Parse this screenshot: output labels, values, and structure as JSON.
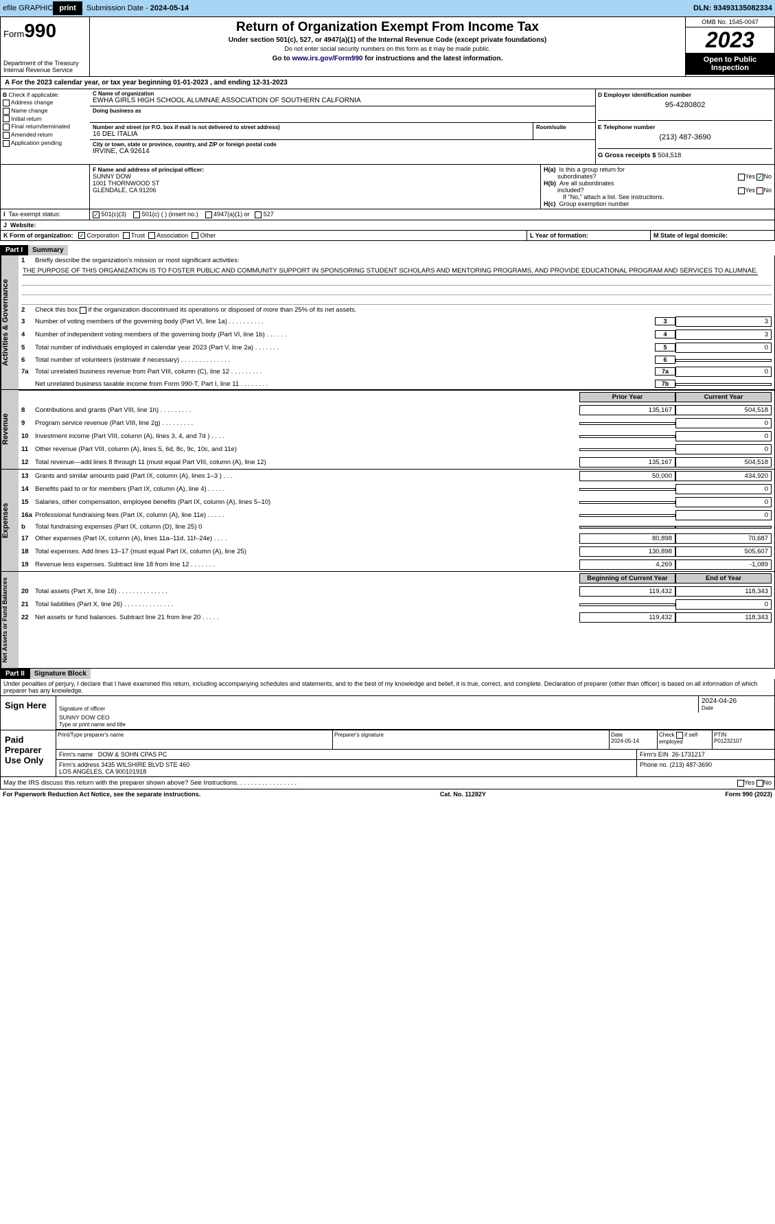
{
  "topbar": {
    "efile": "efile GRAPHIC",
    "print": "print",
    "subdate_lbl": "Submission Date - ",
    "subdate": "2024-05-14",
    "dln_lbl": "DLN: ",
    "dln": "93493135082334"
  },
  "header": {
    "form_lbl": "Form",
    "form_num": "990",
    "dept": "Department of the Treasury\nInternal Revenue Service",
    "title": "Return of Organization Exempt From Income Tax",
    "sub1": "Under section 501(c), 527, or 4947(a)(1) of the Internal Revenue Code (except private foundations)",
    "sub2": "Do not enter social security numbers on this form as it may be made public.",
    "goto": "Go to www.irs.gov/Form990 for instructions and the latest information.",
    "goto_url": "www.irs.gov/Form990",
    "omb": "OMB No. 1545-0047",
    "year": "2023",
    "open": "Open to Public Inspection"
  },
  "A": {
    "text": "For the 2023 calendar year, or tax year beginning 01-01-2023    , and ending 12-31-2023"
  },
  "B": {
    "lbl": "B Check if applicable:",
    "items": [
      "Address change",
      "Name change",
      "Initial return",
      "Final return/terminated",
      "Amended return",
      "Application pending"
    ]
  },
  "C": {
    "name_lbl": "C Name of organization",
    "name": "EWHA GIRLS HIGH SCHOOL ALUMNAE ASSOCIATION OF SOUTHERN CALFORNIA",
    "dba_lbl": "Doing business as",
    "addr_lbl": "Number and street (or P.O. box if mail is not delivered to street address)",
    "addr": "16 DEL ITALIA",
    "room_lbl": "Room/suite",
    "city_lbl": "City or town, state or province, country, and ZIP or foreign postal code",
    "city": "IRVINE, CA  92614"
  },
  "D": {
    "lbl": "D Employer identification number",
    "val": "95-4280802"
  },
  "E": {
    "lbl": "E Telephone number",
    "val": "(213) 487-3690"
  },
  "G": {
    "lbl": "G Gross receipts $",
    "val": "504,518"
  },
  "F": {
    "lbl": "F  Name and address of principal officer:",
    "name": "SUNNY DOW",
    "addr1": "1001 THORNWOOD ST",
    "addr2": "GLENDALE, CA  91206"
  },
  "H": {
    "a": "H(a)  Is this a group return for subordinates?",
    "b": "H(b)  Are all subordinates included?",
    "b_note": "If \"No,\" attach a list. See instructions.",
    "c": "H(c)  Group exemption number",
    "yes": "Yes",
    "no": "No"
  },
  "I": {
    "lbl": "Tax-exempt status:",
    "opts": [
      "501(c)(3)",
      "501(c) (  ) (insert no.)",
      "4947(a)(1) or",
      "527"
    ]
  },
  "J": {
    "lbl": "Website:"
  },
  "K": {
    "lbl": "K Form of organization:",
    "opts": [
      "Corporation",
      "Trust",
      "Association",
      "Other"
    ]
  },
  "L": {
    "lbl": "L Year of formation:"
  },
  "M": {
    "lbl": "M State of legal domicile:"
  },
  "part1": {
    "hdr": "Part I",
    "title": "Summary",
    "side1": "Activities & Governance",
    "side2": "Revenue",
    "side3": "Expenses",
    "side4": "Net Assets or Fund Balances",
    "l1_lbl": "Briefly describe the organization's mission or most significant activities:",
    "l1_txt": "THE PURPOSE OF THIS ORGANIZATION IS TO FOSTER PUBLIC AND COMMUNITY SUPPORT IN SPONSORING STUDENT SCHOLARS AND MENTORING PROGRAMS, AND PROVIDE EDUCATIONAL PROGRAM AND SERVICES TO ALUMNAE.",
    "l2": "Check this box      if the organization discontinued its operations or disposed of more than 25% of its net assets.",
    "lines_a": [
      {
        "n": "3",
        "t": "Number of voting members of the governing body (Part VI, line 1a)   .    .    .    .    .    .    .    .    .    .",
        "v": "3"
      },
      {
        "n": "4",
        "t": "Number of independent voting members of the governing body (Part VI, line 1b)   .    .    .    .    .    .",
        "v": "3"
      },
      {
        "n": "5",
        "t": "Total number of individuals employed in calendar year 2023 (Part V, line 2a)   .    .    .    .    .    .    .",
        "v": "0"
      },
      {
        "n": "6",
        "t": "Total number of volunteers (estimate if necessary)   .    .    .    .    .    .    .    .    .    .    .    .    .    .",
        "v": ""
      },
      {
        "n": "7a",
        "t": "Total unrelated business revenue from Part VIII, column (C), line 12   .    .    .    .    .    .    .    .    .",
        "v": "0"
      },
      {
        "n": "",
        "t": "Net unrelated business taxable income from Form 990-T, Part I, line 11   .    .    .    .    .    .    .    .",
        "n2": "7b",
        "v": ""
      }
    ],
    "col_prior": "Prior Year",
    "col_curr": "Current Year",
    "rev": [
      {
        "n": "8",
        "t": "Contributions and grants (Part VIII, line 1h)   .    .    .    .    .    .    .    .    .",
        "p": "135,167",
        "c": "504,518"
      },
      {
        "n": "9",
        "t": "Program service revenue (Part VIII, line 2g)   .    .    .    .    .    .    .    .    .",
        "p": "",
        "c": "0"
      },
      {
        "n": "10",
        "t": "Investment income (Part VIII, column (A), lines 3, 4, and 7d )   .    .    .    .",
        "p": "",
        "c": "0"
      },
      {
        "n": "11",
        "t": "Other revenue (Part VIII, column (A), lines 5, 6d, 8c, 9c, 10c, and 11e)",
        "p": "",
        "c": "0"
      },
      {
        "n": "12",
        "t": "Total revenue—add lines 8 through 11 (must equal Part VIII, column (A), line 12)",
        "p": "135,167",
        "c": "504,518"
      }
    ],
    "exp": [
      {
        "n": "13",
        "t": "Grants and similar amounts paid (Part IX, column (A), lines 1–3 )   .    .    .",
        "p": "50,000",
        "c": "434,920"
      },
      {
        "n": "14",
        "t": "Benefits paid to or for members (Part IX, column (A), line 4)   .    .    .    .    .",
        "p": "",
        "c": "0"
      },
      {
        "n": "15",
        "t": "Salaries, other compensation, employee benefits (Part IX, column (A), lines 5–10)",
        "p": "",
        "c": "0"
      },
      {
        "n": "16a",
        "t": "Professional fundraising fees (Part IX, column (A), line 11e)   .    .    .    .    .",
        "p": "",
        "c": "0"
      },
      {
        "n": "b",
        "t": "Total fundraising expenses (Part IX, column (D), line 25) 0",
        "p": "gray",
        "c": "gray"
      },
      {
        "n": "17",
        "t": "Other expenses (Part IX, column (A), lines 11a–11d, 11f–24e)   .    .    .    .",
        "p": "80,898",
        "c": "70,687"
      },
      {
        "n": "18",
        "t": "Total expenses. Add lines 13–17 (must equal Part IX, column (A), line 25)",
        "p": "130,898",
        "c": "505,607"
      },
      {
        "n": "19",
        "t": "Revenue less expenses. Subtract line 18 from line 12   .    .    .    .    .    .    .",
        "p": "4,269",
        "c": "-1,089"
      }
    ],
    "col_beg": "Beginning of Current Year",
    "col_end": "End of Year",
    "net": [
      {
        "n": "20",
        "t": "Total assets (Part X, line 16)   .    .    .    .    .    .    .    .    .    .    .    .    .    .",
        "p": "119,432",
        "c": "118,343"
      },
      {
        "n": "21",
        "t": "Total liabilities (Part X, line 26)   .    .    .    .    .    .    .    .    .    .    .    .    .    .",
        "p": "",
        "c": "0"
      },
      {
        "n": "22",
        "t": "Net assets or fund balances. Subtract line 21 from line 20   .    .    .    .    .",
        "p": "119,432",
        "c": "118,343"
      }
    ]
  },
  "part2": {
    "hdr": "Part II",
    "title": "Signature Block",
    "decl": "Under penalties of perjury, I declare that I have examined this return, including accompanying schedules and statements, and to the best of my knowledge and belief, it is true, correct, and complete. Declaration of preparer (other than officer) is based on all information of which preparer has any knowledge.",
    "sign_here": "Sign Here",
    "sig_officer": "Signature of officer",
    "sig_date": "Date",
    "sig_date_val": "2024-04-26",
    "name": "SUNNY DOW CEO",
    "name_lbl": "Type or print name and title",
    "paid": "Paid Preparer Use Only",
    "prep_name_lbl": "Print/Type preparer's name",
    "prep_sig_lbl": "Preparer's signature",
    "date_lbl": "Date",
    "date_val": "2024-05-14",
    "check_lbl": "Check       if self-employed",
    "ptin_lbl": "PTIN",
    "ptin": "P01232107",
    "firm_name_lbl": "Firm's name",
    "firm_name": "DOW & SOHN CPAS PC",
    "firm_ein_lbl": "Firm's EIN",
    "firm_ein": "26-1731217",
    "firm_addr_lbl": "Firm's address",
    "firm_addr": "3435 WILSHIRE BLVD STE 460\nLOS ANGELES, CA  900101918",
    "phone_lbl": "Phone no.",
    "phone": "(213) 487-3690",
    "discuss": "May the IRS discuss this return with the preparer shown above? See Instructions.   .    .    .    .    .    .    .    .    .    .    .    .    .    .    .    ."
  },
  "footer": {
    "pra": "For Paperwork Reduction Act Notice, see the separate instructions.",
    "cat": "Cat. No. 11282Y",
    "form": "Form 990 (2023)"
  }
}
